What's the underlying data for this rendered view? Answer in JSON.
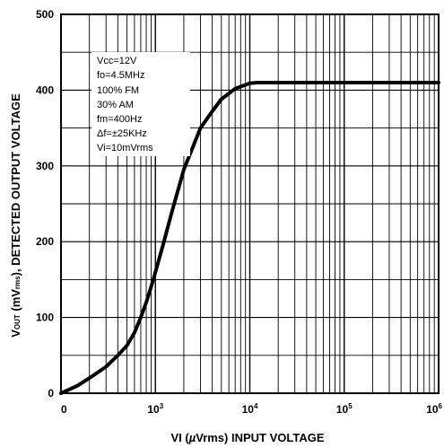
{
  "chart_data": {
    "type": "line",
    "title": "",
    "xlabel": "VI (µVrms) INPUT VOLTAGE",
    "xlabel_parts": {
      "main": "VI (",
      "mu": "µ",
      "rest": "Vrms) INPUT VOLTAGE"
    },
    "ylabel": "VOUT (mVrms), DETECTED OUTPUT VOLTAGE",
    "ylabel_parts": {
      "v": "V",
      "sub1": "OUT",
      "mid": " (mV",
      "sub2": "rms",
      "end": "), DETECTED OUTPUT VOLTAGE"
    },
    "x_scale": "log",
    "xlim": [
      100,
      1000000
    ],
    "ylim": [
      0,
      500
    ],
    "grid": true,
    "y_ticks": [
      0,
      100,
      200,
      300,
      400,
      500
    ],
    "x_tick_labels": [
      {
        "value": 100,
        "base": "0",
        "exp": ""
      },
      {
        "value": 1000,
        "base": "10",
        "exp": "3"
      },
      {
        "value": 10000,
        "base": "10",
        "exp": "4"
      },
      {
        "value": 100000,
        "base": "10",
        "exp": "5"
      },
      {
        "value": 1000000,
        "base": "10",
        "exp": "6"
      }
    ],
    "annotations": [
      "Vcc=12V",
      "fo=4.5MHz",
      "100% FM",
      "30% AM",
      "fm=400Hz",
      "Δf=±25KHz",
      "Vi=10mVrms"
    ],
    "series": [
      {
        "color": "#000000",
        "points": [
          {
            "x": 100,
            "y": 0
          },
          {
            "x": 150,
            "y": 10
          },
          {
            "x": 200,
            "y": 20
          },
          {
            "x": 300,
            "y": 35
          },
          {
            "x": 400,
            "y": 50
          },
          {
            "x": 500,
            "y": 63
          },
          {
            "x": 600,
            "y": 80
          },
          {
            "x": 700,
            "y": 100
          },
          {
            "x": 800,
            "y": 120
          },
          {
            "x": 900,
            "y": 140
          },
          {
            "x": 1000,
            "y": 160
          },
          {
            "x": 1200,
            "y": 195
          },
          {
            "x": 1500,
            "y": 240
          },
          {
            "x": 2000,
            "y": 295
          },
          {
            "x": 3000,
            "y": 350
          },
          {
            "x": 4000,
            "y": 372
          },
          {
            "x": 5000,
            "y": 388
          },
          {
            "x": 7000,
            "y": 402
          },
          {
            "x": 10000,
            "y": 409
          },
          {
            "x": 12000,
            "y": 410
          },
          {
            "x": 1000000,
            "y": 410
          }
        ]
      }
    ]
  }
}
